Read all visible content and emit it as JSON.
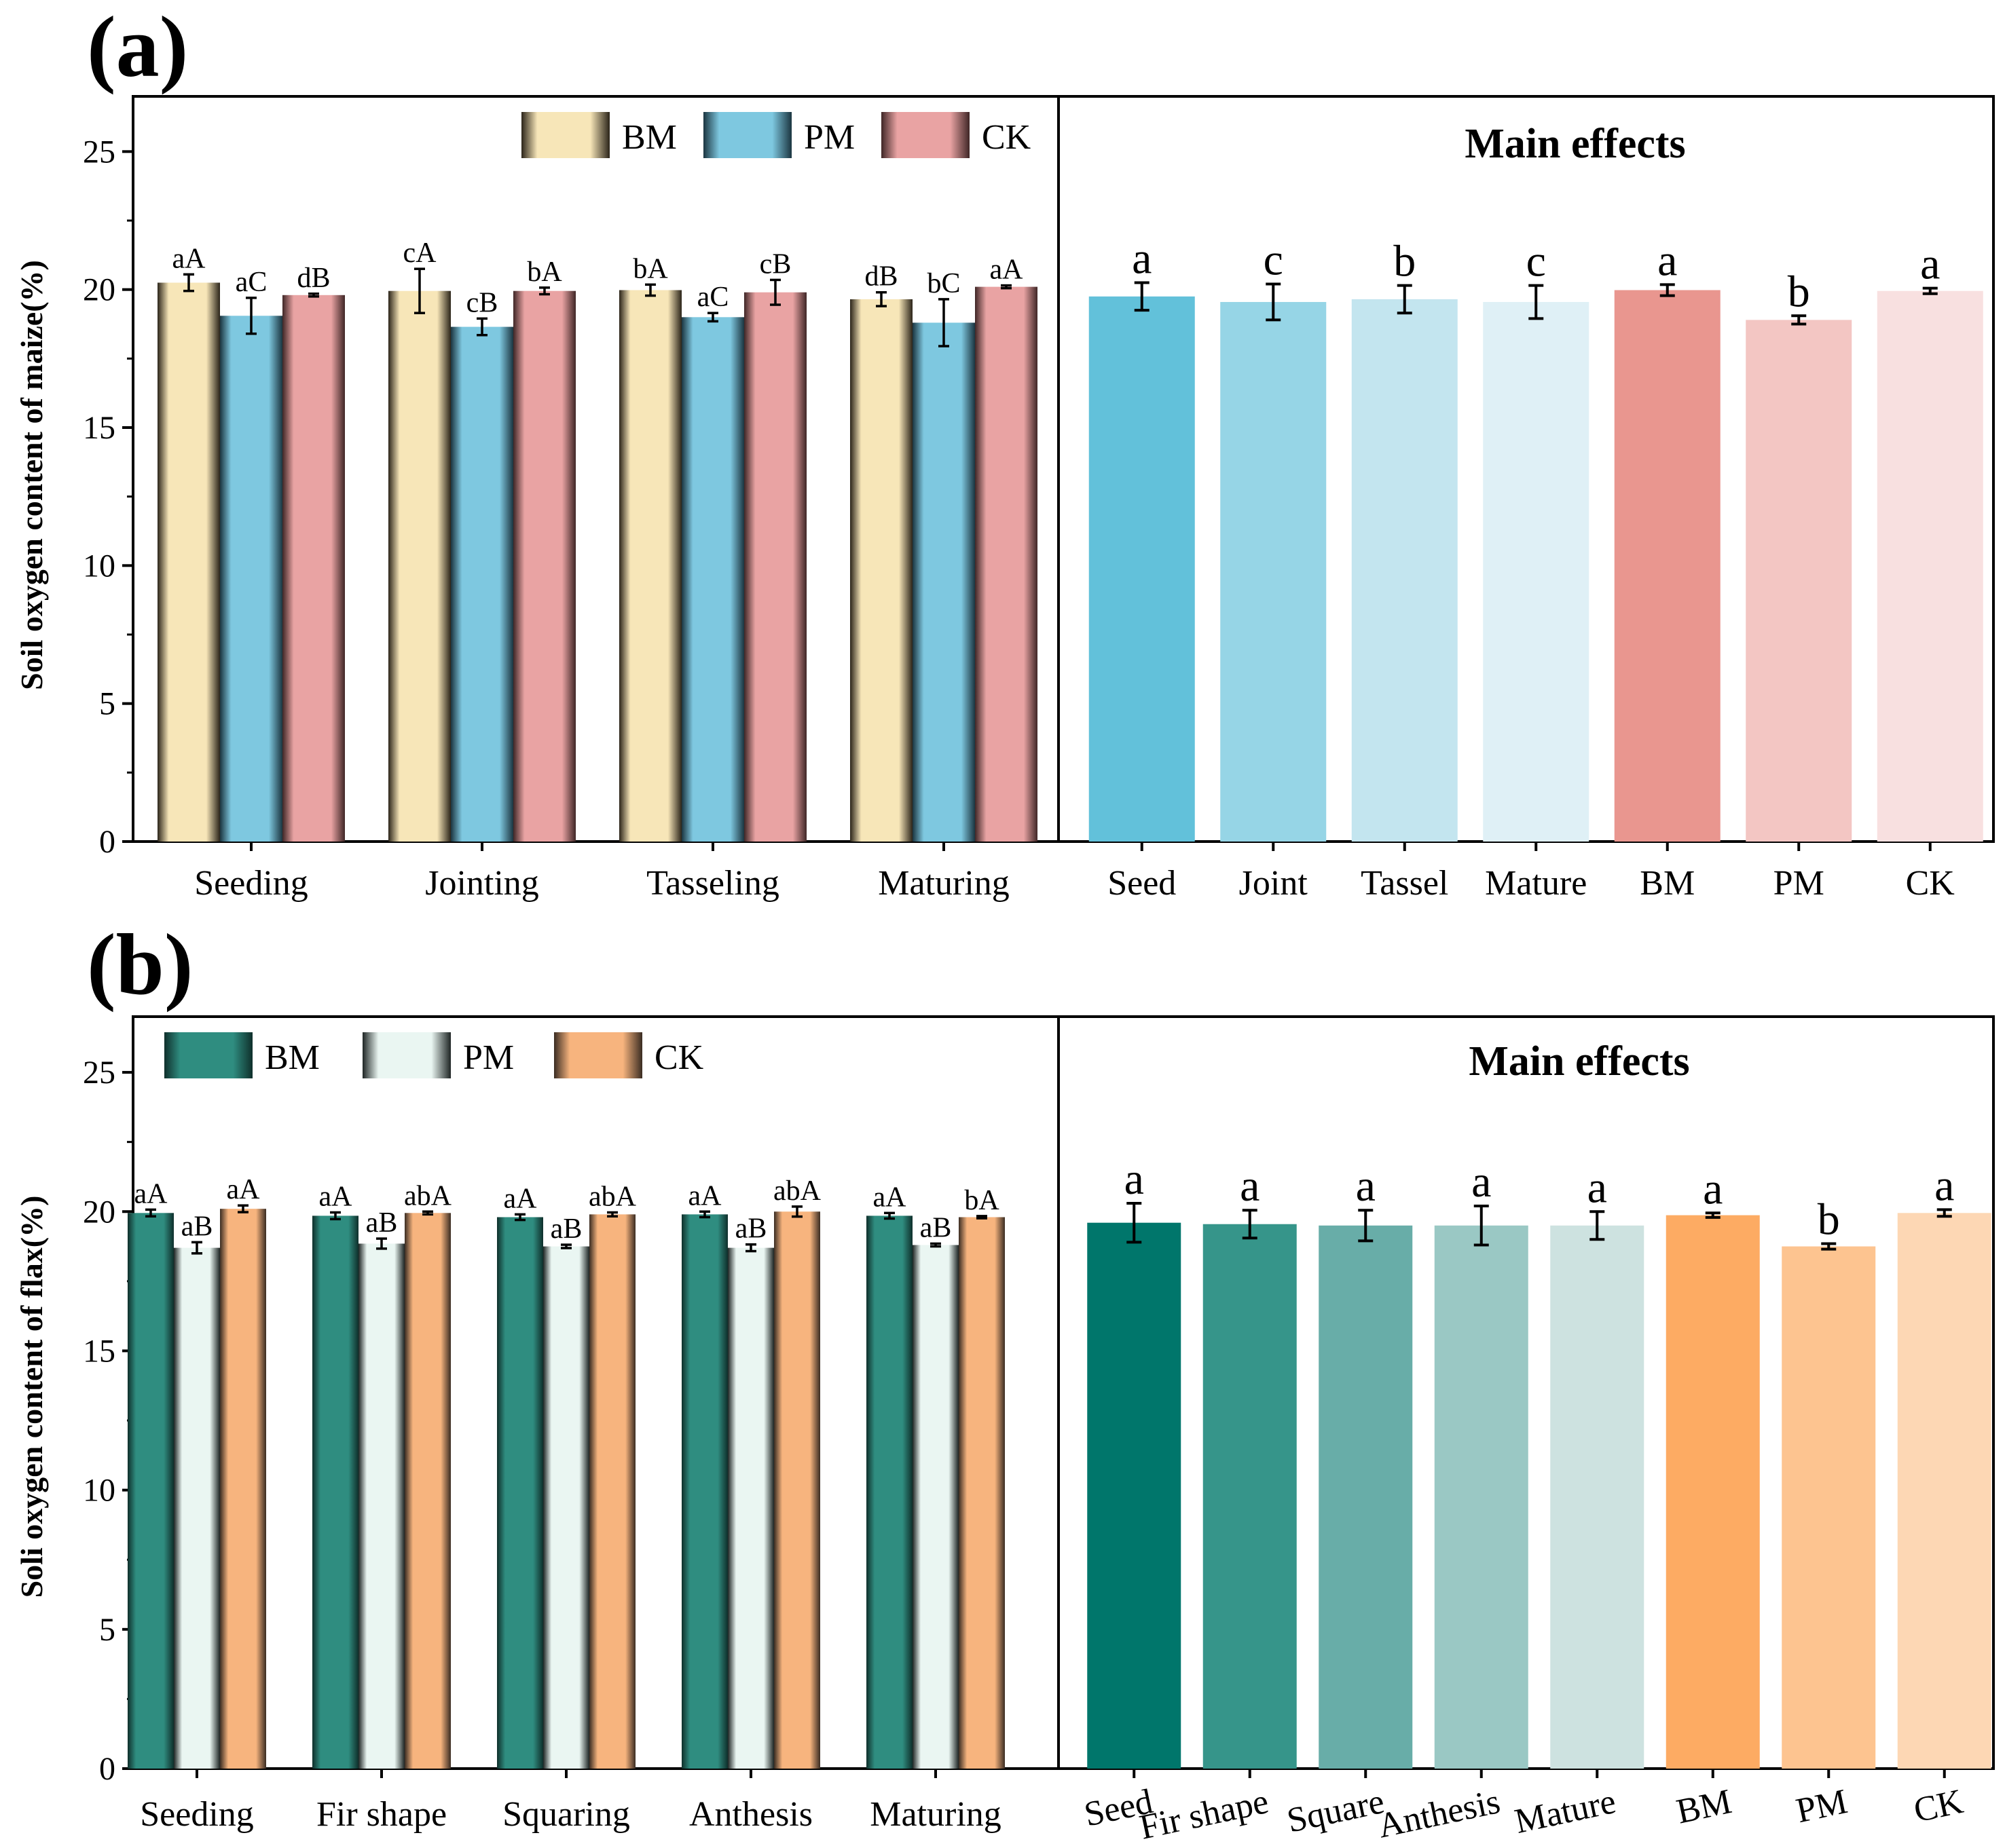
{
  "panels": [
    {
      "letter": "(a)",
      "ylabel": "Soil oxygen content of maize(%)",
      "legend": [
        {
          "name": "BM",
          "gradient": [
            "#2b2419",
            "#f7e6b8"
          ]
        },
        {
          "name": "PM",
          "gradient": [
            "#1b3540",
            "#7ec8e0"
          ]
        },
        {
          "name": "CK",
          "gradient": [
            "#3f2626",
            "#e9a3a3"
          ]
        }
      ]
    },
    {
      "letter": "(b)",
      "ylabel": "Soli oxygen content of flax(%)",
      "legend": [
        {
          "name": "BM",
          "gradient": [
            "#0f2f2b",
            "#2f8d80"
          ]
        },
        {
          "name": "PM",
          "gradient": [
            "#1e2524",
            "#eaf6f2"
          ]
        },
        {
          "name": "CK",
          "gradient": [
            "#3a2c22",
            "#f7b47e"
          ]
        }
      ]
    }
  ],
  "chart_data": [
    {
      "type": "bar",
      "title": "",
      "ylabel": "Soil oxygen content of maize(%)",
      "ylim": [
        0,
        27
      ],
      "yticks": [
        0,
        5,
        10,
        15,
        20,
        25
      ],
      "categories": [
        "Seeding",
        "Jointing",
        "Tasseling",
        "Maturing"
      ],
      "series": [
        {
          "name": "BM",
          "values": [
            20.25,
            19.95,
            19.98,
            19.65
          ],
          "errors": [
            0.3,
            0.8,
            0.2,
            0.25
          ],
          "labels": [
            "aA",
            "cA",
            "bA",
            "dB"
          ]
        },
        {
          "name": "PM",
          "values": [
            19.05,
            18.65,
            19.0,
            18.8
          ],
          "errors": [
            0.65,
            0.3,
            0.15,
            0.85
          ],
          "labels": [
            "aC",
            "cB",
            "aC",
            "bC"
          ]
        },
        {
          "name": "CK",
          "values": [
            19.8,
            19.95,
            19.9,
            20.1
          ],
          "errors": [
            0.05,
            0.12,
            0.45,
            0.05
          ],
          "labels": [
            "dB",
            "bA",
            "cB",
            "aA"
          ]
        }
      ]
    },
    {
      "type": "bar",
      "title": "Main effects",
      "ylim": [
        0,
        27
      ],
      "categories": [
        "Seed",
        "Joint",
        "Tassel",
        "Mature",
        "BM",
        "PM",
        "CK"
      ],
      "values": [
        19.75,
        19.55,
        19.65,
        19.55,
        19.98,
        18.9,
        19.95
      ],
      "errors": [
        0.5,
        0.65,
        0.5,
        0.6,
        0.2,
        0.15,
        0.1
      ],
      "labels": [
        "a",
        "c",
        "b",
        "c",
        "a",
        "b",
        "a"
      ],
      "colors": [
        "#62c1da",
        "#96d5e6",
        "#c3e5ef",
        "#dff0f6",
        "#e9968f",
        "#f3c6c3",
        "#f8e0e0"
      ]
    },
    {
      "type": "bar",
      "title": "",
      "ylabel": "Soli oxygen content of flax(%)",
      "ylim": [
        0,
        27
      ],
      "yticks": [
        0,
        5,
        10,
        15,
        20,
        25
      ],
      "categories": [
        "Seeding",
        "Fir shape",
        "Squaring",
        "Anthesis",
        "Maturing"
      ],
      "series": [
        {
          "name": "BM",
          "values": [
            19.95,
            19.85,
            19.8,
            19.9,
            19.85
          ],
          "errors": [
            0.12,
            0.12,
            0.1,
            0.1,
            0.1
          ],
          "labels": [
            "aA",
            "aA",
            "aA",
            "aA",
            "aA"
          ]
        },
        {
          "name": "PM",
          "values": [
            18.7,
            18.85,
            18.75,
            18.7,
            18.8
          ],
          "errors": [
            0.2,
            0.18,
            0.06,
            0.12,
            0.05
          ],
          "labels": [
            "aB",
            "aB",
            "aB",
            "aB",
            "aB"
          ]
        },
        {
          "name": "CK",
          "values": [
            20.1,
            19.95,
            19.9,
            20.0,
            19.8
          ],
          "errors": [
            0.12,
            0.05,
            0.07,
            0.18,
            0.04
          ],
          "labels": [
            "aA",
            "abA",
            "abA",
            "abA",
            "bA"
          ]
        }
      ]
    },
    {
      "type": "bar",
      "title": "Main effects",
      "ylim": [
        0,
        27
      ],
      "categories": [
        "Seed",
        "Fir shape",
        "Square",
        "Anthesis",
        "Mature",
        "BM",
        "PM",
        "CK"
      ],
      "values": [
        19.6,
        19.55,
        19.5,
        19.5,
        19.5,
        19.87,
        18.75,
        19.95
      ],
      "errors": [
        0.7,
        0.5,
        0.55,
        0.7,
        0.5,
        0.08,
        0.1,
        0.12
      ],
      "labels": [
        "a",
        "a",
        "a",
        "a",
        "a",
        "a",
        "b",
        "a"
      ],
      "colors": [
        "#00766b",
        "#36958a",
        "#68ada8",
        "#9ac8c4",
        "#cde2e0",
        "#fdab63",
        "#fdc490",
        "#fdd7b4"
      ]
    }
  ]
}
